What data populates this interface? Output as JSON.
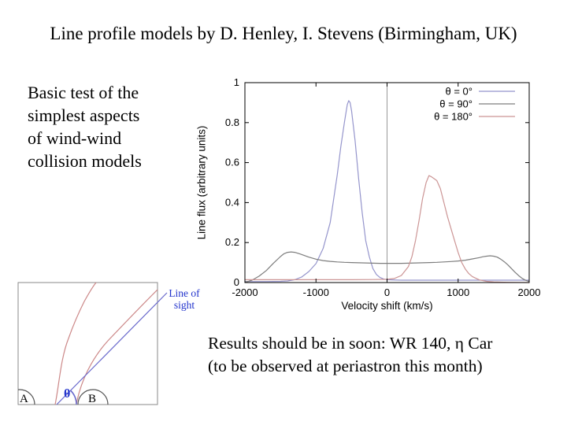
{
  "title": "Line profile models by D. Henley, I. Stevens (Birmingham, UK)",
  "left_text": {
    "lines": [
      "Basic test of the",
      "simplest aspects",
      "of wind-wind",
      "collision models"
    ]
  },
  "bottom_text": {
    "lines": [
      "Results should be in soon: WR 140, η Car",
      "(to be observed at periastron this month)"
    ]
  },
  "chart_data": {
    "type": "line",
    "title": "",
    "xlabel": "Velocity shift (km/s)",
    "ylabel": "Line flux (arbitrary units)",
    "xlim": [
      -2000,
      2000
    ],
    "ylim": [
      0,
      1
    ],
    "x_ticks": [
      -2000,
      -1000,
      0,
      1000,
      2000
    ],
    "y_ticks": [
      0,
      0.2,
      0.4,
      0.6,
      0.8,
      1
    ],
    "y_tick_labels": [
      "0",
      "0.2",
      "0.4",
      "0.6",
      "0.8",
      "1"
    ],
    "grid": false,
    "zero_vline": true,
    "zero_vline_color": "#999999",
    "border_color": "#000000",
    "legend_position": "top-right-inside",
    "series": [
      {
        "name": "θ = 0°",
        "label_color": "#0000cc",
        "line_color": "#9595cc",
        "points": [
          [
            -2000,
            0.005
          ],
          [
            -1700,
            0.005
          ],
          [
            -1500,
            0.006
          ],
          [
            -1400,
            0.008
          ],
          [
            -1300,
            0.014
          ],
          [
            -1200,
            0.028
          ],
          [
            -1100,
            0.055
          ],
          [
            -1000,
            0.095
          ],
          [
            -900,
            0.17
          ],
          [
            -800,
            0.3
          ],
          [
            -700,
            0.54
          ],
          [
            -650,
            0.68
          ],
          [
            -600,
            0.8
          ],
          [
            -560,
            0.89
          ],
          [
            -540,
            0.91
          ],
          [
            -520,
            0.9
          ],
          [
            -500,
            0.86
          ],
          [
            -450,
            0.71
          ],
          [
            -400,
            0.52
          ],
          [
            -350,
            0.35
          ],
          [
            -300,
            0.21
          ],
          [
            -250,
            0.13
          ],
          [
            -200,
            0.07
          ],
          [
            -150,
            0.04
          ],
          [
            -100,
            0.025
          ],
          [
            -50,
            0.018
          ],
          [
            0,
            0.014
          ],
          [
            200,
            0.012
          ],
          [
            600,
            0.012
          ],
          [
            1200,
            0.012
          ],
          [
            2000,
            0.012
          ]
        ]
      },
      {
        "name": "θ = 90°",
        "label_color": "#000000",
        "line_color": "#7d7d7d",
        "points": [
          [
            -2000,
            0.002
          ],
          [
            -1950,
            0.006
          ],
          [
            -1900,
            0.012
          ],
          [
            -1800,
            0.032
          ],
          [
            -1700,
            0.06
          ],
          [
            -1600,
            0.096
          ],
          [
            -1500,
            0.13
          ],
          [
            -1450,
            0.144
          ],
          [
            -1400,
            0.151
          ],
          [
            -1350,
            0.153
          ],
          [
            -1300,
            0.151
          ],
          [
            -1250,
            0.146
          ],
          [
            -1200,
            0.14
          ],
          [
            -1100,
            0.127
          ],
          [
            -1000,
            0.117
          ],
          [
            -900,
            0.11
          ],
          [
            -800,
            0.106
          ],
          [
            -700,
            0.103
          ],
          [
            -600,
            0.101
          ],
          [
            -500,
            0.1
          ],
          [
            -400,
            0.099
          ],
          [
            -300,
            0.098
          ],
          [
            -200,
            0.097
          ],
          [
            -100,
            0.096
          ],
          [
            0,
            0.096
          ],
          [
            100,
            0.096
          ],
          [
            200,
            0.096
          ],
          [
            300,
            0.097
          ],
          [
            400,
            0.098
          ],
          [
            500,
            0.099
          ],
          [
            600,
            0.1
          ],
          [
            700,
            0.101
          ],
          [
            800,
            0.103
          ],
          [
            900,
            0.105
          ],
          [
            1000,
            0.108
          ],
          [
            1100,
            0.112
          ],
          [
            1200,
            0.118
          ],
          [
            1300,
            0.125
          ],
          [
            1350,
            0.129
          ],
          [
            1400,
            0.132
          ],
          [
            1450,
            0.134
          ],
          [
            1500,
            0.132
          ],
          [
            1550,
            0.127
          ],
          [
            1600,
            0.117
          ],
          [
            1650,
            0.104
          ],
          [
            1700,
            0.088
          ],
          [
            1750,
            0.07
          ],
          [
            1800,
            0.052
          ],
          [
            1850,
            0.035
          ],
          [
            1900,
            0.021
          ],
          [
            1950,
            0.011
          ],
          [
            2000,
            0.005
          ]
        ]
      },
      {
        "name": "θ = 180°",
        "label_color": "#cc0000",
        "line_color": "#cc9595",
        "points": [
          [
            -2000,
            0.014
          ],
          [
            -1500,
            0.014
          ],
          [
            -1000,
            0.014
          ],
          [
            -500,
            0.014
          ],
          [
            -200,
            0.015
          ],
          [
            0,
            0.016
          ],
          [
            100,
            0.02
          ],
          [
            200,
            0.035
          ],
          [
            300,
            0.08
          ],
          [
            350,
            0.13
          ],
          [
            400,
            0.21
          ],
          [
            450,
            0.31
          ],
          [
            500,
            0.42
          ],
          [
            550,
            0.5
          ],
          [
            590,
            0.535
          ],
          [
            620,
            0.53
          ],
          [
            660,
            0.52
          ],
          [
            700,
            0.51
          ],
          [
            750,
            0.47
          ],
          [
            800,
            0.4
          ],
          [
            850,
            0.33
          ],
          [
            900,
            0.27
          ],
          [
            950,
            0.21
          ],
          [
            1000,
            0.15
          ],
          [
            1050,
            0.1
          ],
          [
            1100,
            0.068
          ],
          [
            1150,
            0.045
          ],
          [
            1200,
            0.03
          ],
          [
            1300,
            0.013
          ],
          [
            1400,
            0.006
          ],
          [
            1500,
            0.003
          ],
          [
            1700,
            0.001
          ],
          [
            2000,
            0.0
          ]
        ]
      }
    ]
  },
  "diagram": {
    "labels": {
      "theta": "θ",
      "star_a": "A",
      "star_b": "B",
      "line_of_sight_1": "Line of",
      "line_of_sight_2": "sight"
    },
    "colors": {
      "shock": "#cc8888",
      "sight_line": "#6a6acc",
      "label": "#2233cc",
      "star": "#555555",
      "box_border": "#8a8a8a"
    }
  }
}
